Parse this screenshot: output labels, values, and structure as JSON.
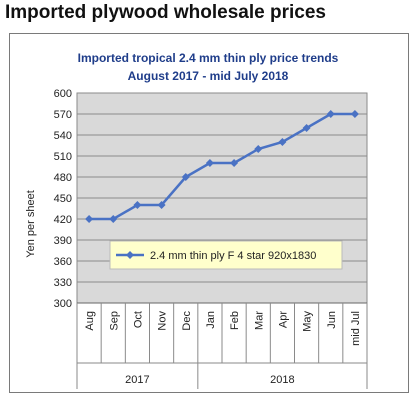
{
  "page_title": "Imported plywood wholesale prices",
  "chart_data": {
    "type": "line",
    "title": "Imported tropical 2.4 mm thin ply price trends",
    "subtitle": "August 2017 -  mid July 2018",
    "xlabel": "",
    "ylabel": "Yen per sheet",
    "ylim": [
      300,
      600
    ],
    "yticks": [
      300,
      330,
      360,
      390,
      420,
      450,
      480,
      510,
      540,
      570,
      600
    ],
    "categories": [
      "Aug",
      "Sep",
      "Oct",
      "Nov",
      "Dec",
      "Jan",
      "Feb",
      "Mar",
      "Apr",
      "May",
      "Jun",
      "mid Jul"
    ],
    "year_groups": [
      {
        "label": "2017",
        "count": 5
      },
      {
        "label": "2018",
        "count": 7
      }
    ],
    "series": [
      {
        "name": "2.4 mm thin ply F 4 star 920x1830",
        "values": [
          420,
          420,
          440,
          440,
          480,
          500,
          500,
          520,
          530,
          550,
          570,
          570
        ]
      }
    ],
    "grid": true,
    "legend": "inside-lower-center",
    "colors": {
      "line": "#4a72c4",
      "plot_bg": "#d9d9d9",
      "legend_bg": "#ffffcc",
      "title": "#1f3d8a"
    }
  }
}
